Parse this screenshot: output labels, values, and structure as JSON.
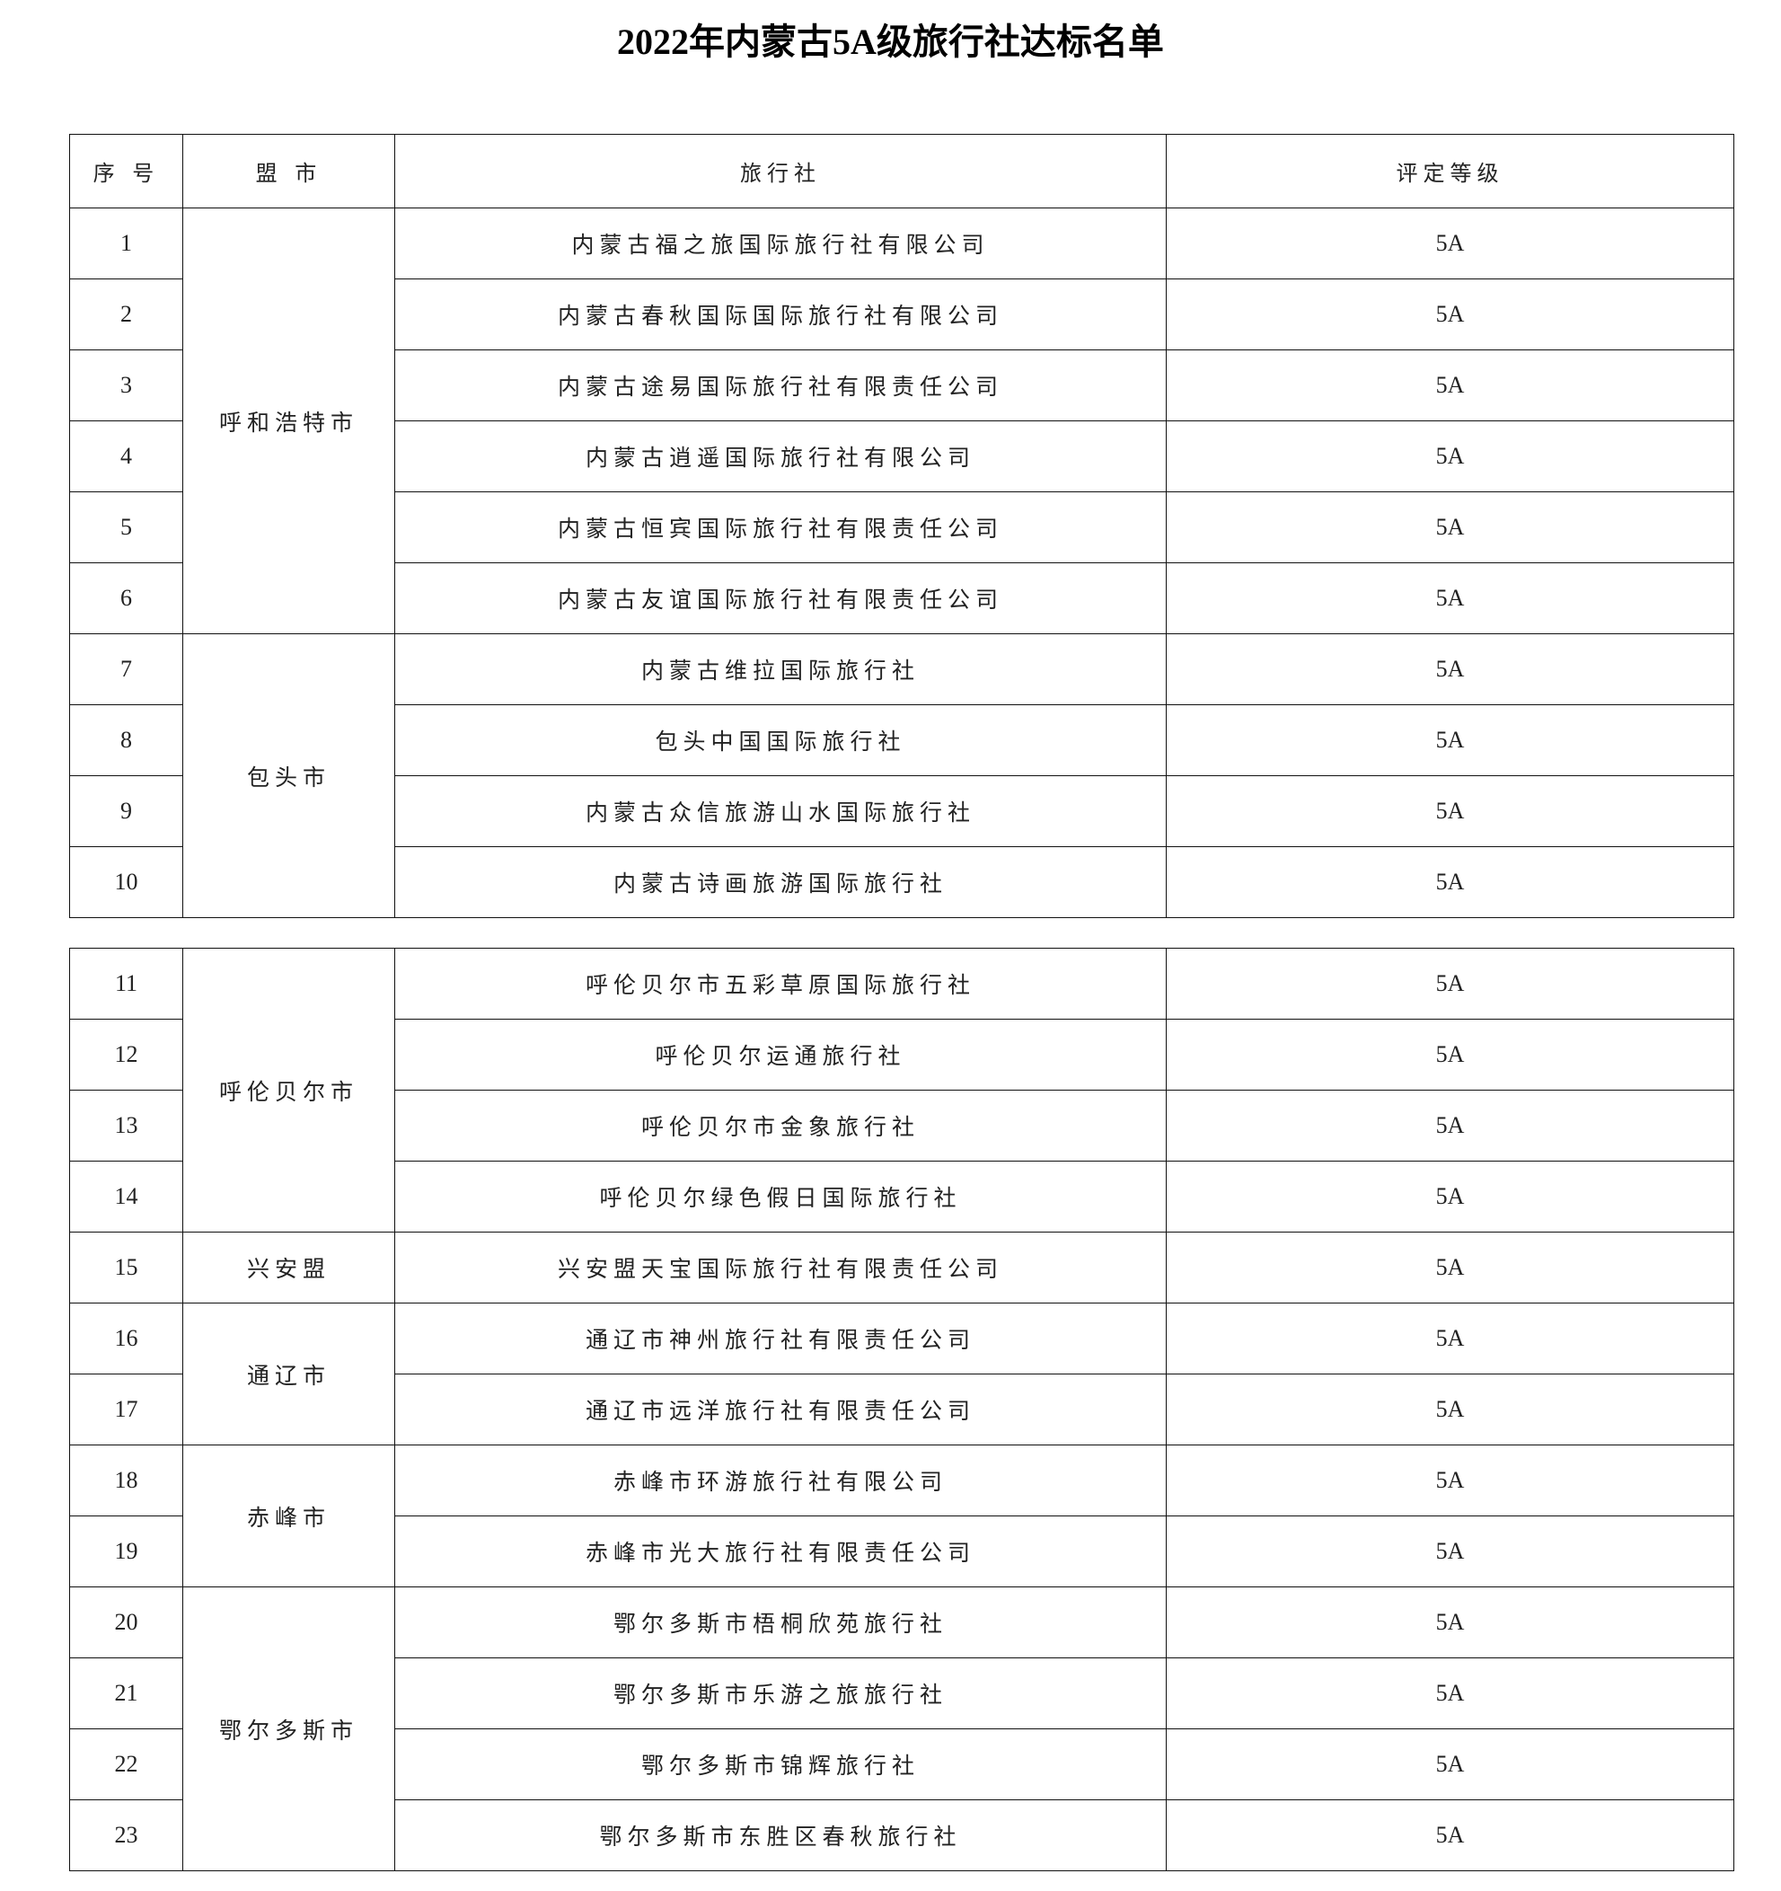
{
  "title": "2022年内蒙古5A级旅行社达标名单",
  "headers": {
    "no": "序 号",
    "city": "盟 市",
    "agency": "旅行社",
    "grade": "评定等级"
  },
  "groups": [
    {
      "city": "呼和浩特市",
      "rows": [
        {
          "no": "1",
          "agency": "内蒙古福之旅国际旅行社有限公司",
          "grade": "5A"
        },
        {
          "no": "2",
          "agency": "内蒙古春秋国际国际旅行社有限公司",
          "grade": "5A"
        },
        {
          "no": "3",
          "agency": "内蒙古途易国际旅行社有限责任公司",
          "grade": "5A"
        },
        {
          "no": "4",
          "agency": "内蒙古逍遥国际旅行社有限公司",
          "grade": "5A"
        },
        {
          "no": "5",
          "agency": "内蒙古恒宾国际旅行社有限责任公司",
          "grade": "5A"
        },
        {
          "no": "6",
          "agency": "内蒙古友谊国际旅行社有限责任公司",
          "grade": "5A"
        }
      ]
    },
    {
      "city": "包头市",
      "rows": [
        {
          "no": "7",
          "agency": "内蒙古维拉国际旅行社",
          "grade": "5A"
        },
        {
          "no": "8",
          "agency": "包头中国国际旅行社",
          "grade": "5A"
        },
        {
          "no": "9",
          "agency": "内蒙古众信旅游山水国际旅行社",
          "grade": "5A"
        },
        {
          "no": "10",
          "agency": "内蒙古诗画旅游国际旅行社",
          "grade": "5A"
        }
      ]
    },
    {
      "city": "呼伦贝尔市",
      "rows": [
        {
          "no": "11",
          "agency": "呼伦贝尔市五彩草原国际旅行社",
          "grade": "5A"
        },
        {
          "no": "12",
          "agency": "呼伦贝尔运通旅行社",
          "grade": "5A"
        },
        {
          "no": "13",
          "agency": "呼伦贝尔市金象旅行社",
          "grade": "5A"
        },
        {
          "no": "14",
          "agency": "呼伦贝尔绿色假日国际旅行社",
          "grade": "5A"
        }
      ]
    },
    {
      "city": "兴安盟",
      "rows": [
        {
          "no": "15",
          "agency": "兴安盟天宝国际旅行社有限责任公司",
          "grade": "5A"
        }
      ]
    },
    {
      "city": "通辽市",
      "rows": [
        {
          "no": "16",
          "agency": "通辽市神州旅行社有限责任公司",
          "grade": "5A"
        },
        {
          "no": "17",
          "agency": "通辽市远洋旅行社有限责任公司",
          "grade": "5A"
        }
      ]
    },
    {
      "city": "赤峰市",
      "rows": [
        {
          "no": "18",
          "agency": "赤峰市环游旅行社有限公司",
          "grade": "5A"
        },
        {
          "no": "19",
          "agency": "赤峰市光大旅行社有限责任公司",
          "grade": "5A"
        }
      ]
    },
    {
      "city": "鄂尔多斯市",
      "rows": [
        {
          "no": "20",
          "agency": "鄂尔多斯市梧桐欣苑旅行社",
          "grade": "5A"
        },
        {
          "no": "21",
          "agency": "鄂尔多斯市乐游之旅旅行社",
          "grade": "5A"
        },
        {
          "no": "22",
          "agency": "鄂尔多斯市锦辉旅行社",
          "grade": "5A"
        },
        {
          "no": "23",
          "agency": "鄂尔多斯市东胜区春秋旅行社",
          "grade": "5A"
        }
      ]
    }
  ]
}
